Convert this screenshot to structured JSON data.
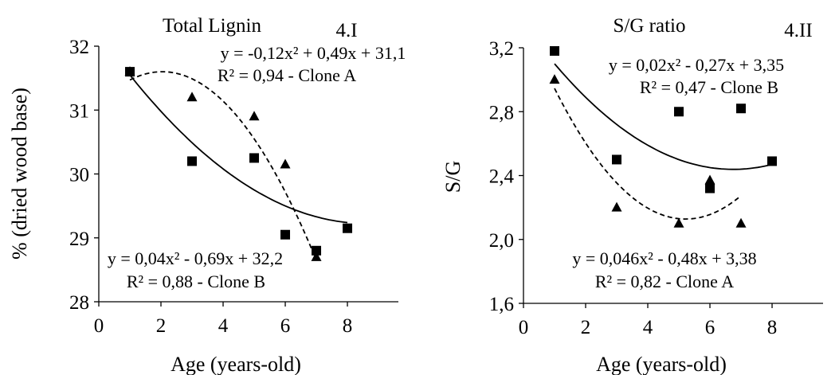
{
  "chart_data": [
    {
      "type": "scatter",
      "title": "Total Lignin",
      "panel_label": "4.I",
      "xlabel": "Age (years-old)",
      "ylabel": "% (dried wood base)",
      "xlim": [
        0,
        9
      ],
      "ylim": [
        28,
        32
      ],
      "x_ticks": [
        "0",
        "2",
        "4",
        "6",
        "8"
      ],
      "y_ticks": [
        "28",
        "29",
        "30",
        "31",
        "32"
      ],
      "grid": false,
      "series": [
        {
          "name": "Clone B",
          "marker": "square",
          "trend": "solid",
          "x": [
            1,
            3,
            5,
            6,
            7,
            8
          ],
          "y": [
            31.6,
            30.2,
            30.25,
            29.05,
            28.8,
            29.15
          ],
          "equation": "y = 0,04x² - 0,69x + 32,2",
          "r2": "R² = 0,88 - Clone B",
          "fit": [
            0.04,
            -0.69,
            32.2
          ],
          "fit_range": [
            1,
            8
          ]
        },
        {
          "name": "Clone A",
          "marker": "triangle",
          "trend": "dashed",
          "x": [
            1,
            3,
            5,
            6,
            7
          ],
          "y": [
            31.6,
            31.2,
            30.9,
            30.15,
            28.7
          ],
          "equation": "y = -0,12x² + 0,49x + 31,1",
          "r2": "R² = 0,94 - Clone A",
          "fit": [
            -0.12,
            0.49,
            31.1
          ],
          "fit_range": [
            1,
            7
          ]
        }
      ]
    },
    {
      "type": "scatter",
      "title": "S/G ratio",
      "panel_label": "4.II",
      "xlabel": "Age (years-old)",
      "ylabel": "S/G",
      "xlim": [
        0,
        9
      ],
      "ylim": [
        1.6,
        3.2
      ],
      "x_ticks": [
        "0",
        "2",
        "4",
        "6",
        "8"
      ],
      "y_ticks": [
        "1,6",
        "2,0",
        "2,4",
        "2,8",
        "3,2"
      ],
      "grid": false,
      "series": [
        {
          "name": "Clone B",
          "marker": "square",
          "trend": "solid",
          "x": [
            1,
            3,
            5,
            6,
            7,
            8
          ],
          "y": [
            3.18,
            2.5,
            2.8,
            2.32,
            2.82,
            2.49
          ],
          "equation": "y = 0,02x² - 0,27x + 3,35",
          "r2": "R² = 0,47 - Clone B",
          "fit": [
            0.02,
            -0.27,
            3.35
          ],
          "fit_range": [
            1,
            8
          ]
        },
        {
          "name": "Clone A",
          "marker": "triangle",
          "trend": "dashed",
          "x": [
            1,
            3,
            5,
            6,
            7
          ],
          "y": [
            3.0,
            2.2,
            2.1,
            2.37,
            2.1
          ],
          "equation": "y = 0,046x² - 0,48x + 3,38",
          "r2": "R² = 0,82 - Clone A",
          "fit": [
            0.046,
            -0.48,
            3.38
          ],
          "fit_range": [
            1,
            7
          ]
        }
      ]
    }
  ]
}
